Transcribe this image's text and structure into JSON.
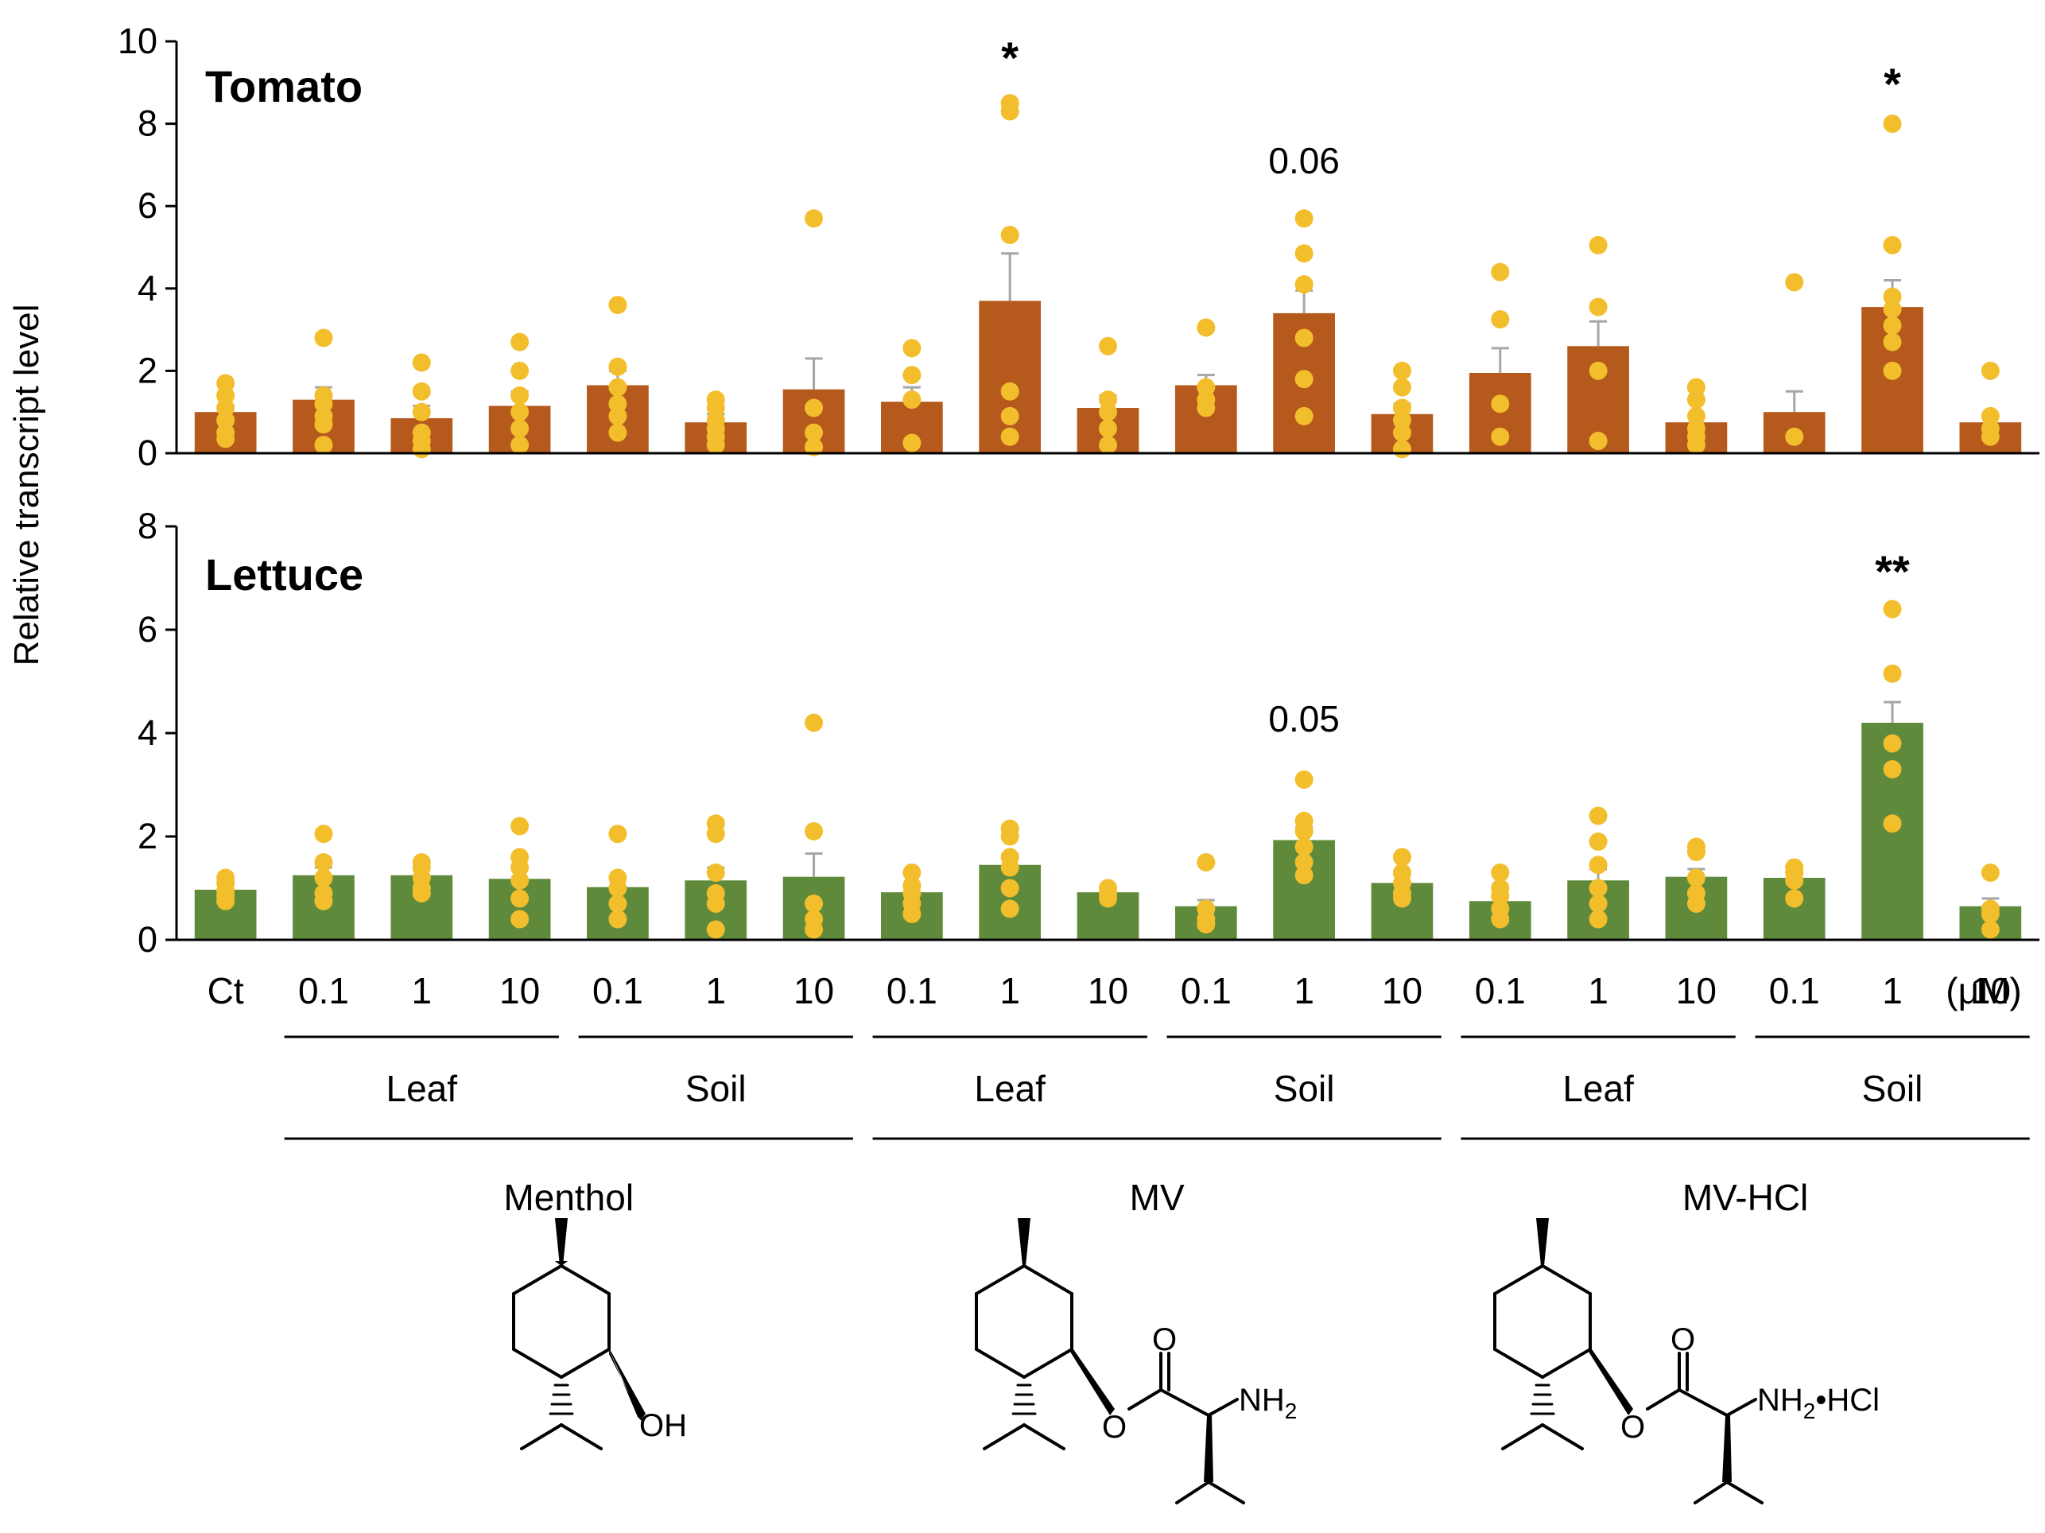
{
  "chart_data": {
    "type": "bar",
    "ylabel": "Relative transcript level",
    "categories": [
      "Ct",
      "0.1",
      "1",
      "10",
      "0.1",
      "1",
      "10",
      "0.1",
      "1",
      "10",
      "0.1",
      "1",
      "10",
      "0.1",
      "1",
      "10",
      "0.1",
      "1",
      "10"
    ],
    "unit_label": "(μM)",
    "application_groups": [
      "Leaf",
      "Soil",
      "Leaf",
      "Soil",
      "Leaf",
      "Soil"
    ],
    "compound_groups": [
      "Menthol",
      "MV",
      "MV-HCl"
    ],
    "panels": [
      {
        "title": "Tomato",
        "color": "#B5591C",
        "ylim": [
          0,
          10
        ],
        "yticks": [
          0,
          2,
          4,
          6,
          8,
          10
        ],
        "values": [
          1.0,
          1.3,
          0.85,
          1.15,
          1.65,
          0.75,
          1.55,
          1.25,
          3.7,
          1.1,
          1.65,
          3.4,
          0.95,
          1.95,
          2.6,
          0.75,
          1.0,
          3.55,
          0.75
        ],
        "errors": [
          0.0,
          0.3,
          0.3,
          0.35,
          0.35,
          0.2,
          0.75,
          0.35,
          1.15,
          0.3,
          0.25,
          0.55,
          0.25,
          0.6,
          0.6,
          0.2,
          0.5,
          0.65,
          0.2
        ],
        "points": [
          [
            1.7,
            1.4,
            1.1,
            0.8,
            0.5,
            0.35
          ],
          [
            2.8,
            1.4,
            1.2,
            0.9,
            0.7,
            0.2
          ],
          [
            2.2,
            1.5,
            1.0,
            0.5,
            0.3,
            0.1
          ],
          [
            2.7,
            2.0,
            1.4,
            1.0,
            0.6,
            0.2
          ],
          [
            3.6,
            2.1,
            1.6,
            1.2,
            0.9,
            0.5
          ],
          [
            1.3,
            1.1,
            0.8,
            0.6,
            0.4,
            0.2
          ],
          [
            5.7,
            1.1,
            0.5,
            0.15
          ],
          [
            2.55,
            1.9,
            1.3,
            0.25
          ],
          [
            8.5,
            8.3,
            5.3,
            1.5,
            0.9,
            0.4
          ],
          [
            2.6,
            1.3,
            1.0,
            0.6,
            0.2
          ],
          [
            3.05,
            1.6,
            1.3,
            1.1
          ],
          [
            5.7,
            4.85,
            4.1,
            2.8,
            1.8,
            0.9
          ],
          [
            2.0,
            1.6,
            1.1,
            0.8,
            0.5,
            0.1
          ],
          [
            4.4,
            3.25,
            1.2,
            0.4
          ],
          [
            5.05,
            3.55,
            2.0,
            0.3
          ],
          [
            1.6,
            1.3,
            0.9,
            0.6,
            0.4,
            0.2
          ],
          [
            4.15,
            0.4
          ],
          [
            8.0,
            5.05,
            3.8,
            3.5,
            3.1,
            2.7,
            2.0
          ],
          [
            2.0,
            0.9,
            0.6,
            0.4
          ]
        ],
        "annotations": [
          {
            "index": 8,
            "text": "*"
          },
          {
            "index": 11,
            "text": "0.06"
          },
          {
            "index": 17,
            "text": "*"
          }
        ]
      },
      {
        "title": "Lettuce",
        "color": "#5F8A3B",
        "ylim": [
          0,
          8
        ],
        "yticks": [
          0,
          2,
          4,
          6,
          8
        ],
        "values": [
          0.97,
          1.25,
          1.25,
          1.18,
          1.02,
          1.15,
          1.22,
          0.92,
          1.45,
          0.92,
          0.65,
          1.93,
          1.1,
          0.75,
          1.15,
          1.22,
          1.2,
          4.2,
          0.65
        ],
        "errors": [
          0.0,
          0.15,
          0.1,
          0.2,
          0.2,
          0.25,
          0.45,
          0.12,
          0.2,
          0.05,
          0.12,
          0.25,
          0.15,
          0.12,
          0.22,
          0.15,
          0.1,
          0.4,
          0.15
        ],
        "points": [
          [
            1.2,
            1.1,
            0.95,
            0.85,
            0.75
          ],
          [
            2.05,
            1.5,
            1.2,
            0.9,
            0.75
          ],
          [
            1.5,
            1.4,
            1.2,
            1.0,
            0.9
          ],
          [
            2.2,
            1.6,
            1.4,
            1.15,
            0.8,
            0.4
          ],
          [
            2.05,
            1.2,
            1.0,
            0.7,
            0.4
          ],
          [
            2.25,
            2.05,
            1.3,
            0.9,
            0.7,
            0.2
          ],
          [
            4.2,
            2.1,
            0.7,
            0.4,
            0.2
          ],
          [
            1.3,
            1.05,
            0.9,
            0.7,
            0.5
          ],
          [
            2.15,
            2.0,
            1.6,
            1.4,
            1.0,
            0.6
          ],
          [
            1.0,
            0.9,
            0.8
          ],
          [
            1.5,
            0.6,
            0.4,
            0.3
          ],
          [
            3.1,
            2.3,
            2.1,
            1.8,
            1.5,
            1.25
          ],
          [
            1.6,
            1.3,
            1.1,
            0.9,
            0.8
          ],
          [
            1.3,
            1.0,
            0.85,
            0.6,
            0.4
          ],
          [
            2.4,
            1.9,
            1.45,
            1.0,
            0.7,
            0.4
          ],
          [
            1.8,
            1.7,
            1.2,
            0.9,
            0.7
          ],
          [
            1.4,
            1.3,
            1.15,
            0.8
          ],
          [
            6.4,
            5.15,
            3.8,
            3.3,
            2.25
          ],
          [
            1.3,
            0.6,
            0.5,
            0.2
          ]
        ],
        "annotations": [
          {
            "index": 11,
            "text": "0.05"
          },
          {
            "index": 17,
            "text": "**"
          }
        ]
      }
    ],
    "point_color": "#F2BE2C",
    "error_color": "#A6A6A6"
  },
  "structures": [
    {
      "group": "Menthol",
      "labels": [
        "OH"
      ]
    },
    {
      "group": "MV",
      "labels": [
        "O",
        "O",
        "NH",
        "2"
      ]
    },
    {
      "group": "MV-HCl",
      "labels": [
        "O",
        "O",
        "NH",
        "2",
        "•HCl"
      ]
    }
  ]
}
